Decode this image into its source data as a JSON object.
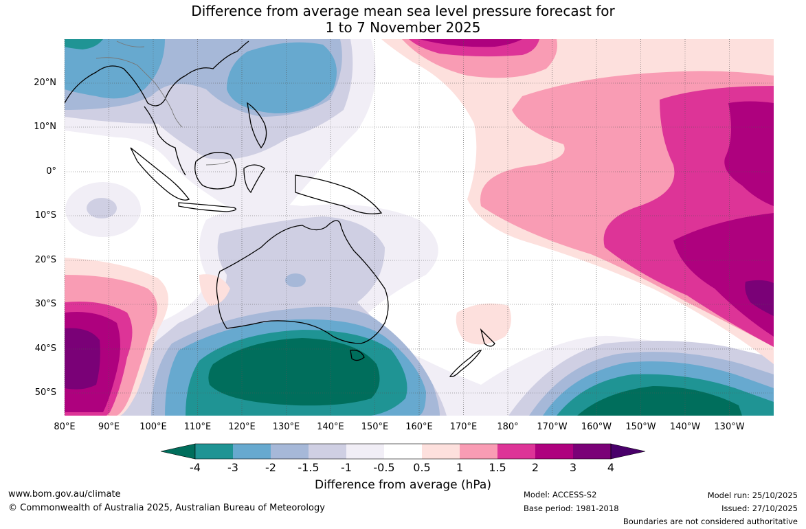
{
  "title": {
    "line1": "Difference from average mean sea level pressure forecast for",
    "line2": "1 to 7 November 2025"
  },
  "map": {
    "latitude_labels": [
      "20°N",
      "10°N",
      "0°",
      "10°S",
      "20°S",
      "30°S",
      "40°S",
      "50°S"
    ],
    "longitude_labels": [
      "80°E",
      "90°E",
      "100°E",
      "110°E",
      "120°E",
      "130°E",
      "140°E",
      "150°E",
      "160°E",
      "170°E",
      "180°",
      "170°W",
      "160°W",
      "150°W",
      "140°W",
      "130°W"
    ]
  },
  "colorbar": {
    "ticks": [
      "-4",
      "-3",
      "-2",
      "-1.5",
      "-1",
      "-0.5",
      "0.5",
      "1",
      "1.5",
      "2",
      "3",
      "4"
    ],
    "title": "Difference from average (hPa)",
    "colors": {
      "below_-4": "#006e5c",
      "-4_-3": "#1f9494",
      "-3_-2": "#67a9cf",
      "-2_-1.5": "#a6b8d8",
      "-1.5_-1": "#cfcfe3",
      "-1_-0.5": "#f1eef6",
      "-0.5_0.5": "#ffffff",
      "0.5_1": "#fde0dd",
      "1_1.5": "#f99cb4",
      "1.5_2": "#dd3497",
      "2_3": "#ae017e",
      "3_4": "#7a0177",
      "above_4": "#49006a"
    }
  },
  "footer": {
    "website": "www.bom.gov.au/climate",
    "copyright": "© Commonwealth of Australia 2025, Australian Bureau of Meteorology",
    "model": "Model: ACCESS-S2",
    "base_period": "Base period: 1981-2018",
    "model_run": "Model run: 25/10/2025",
    "issued": "Issued: 27/10/2025",
    "disclaimer": "Boundaries are not considered authoritative"
  }
}
